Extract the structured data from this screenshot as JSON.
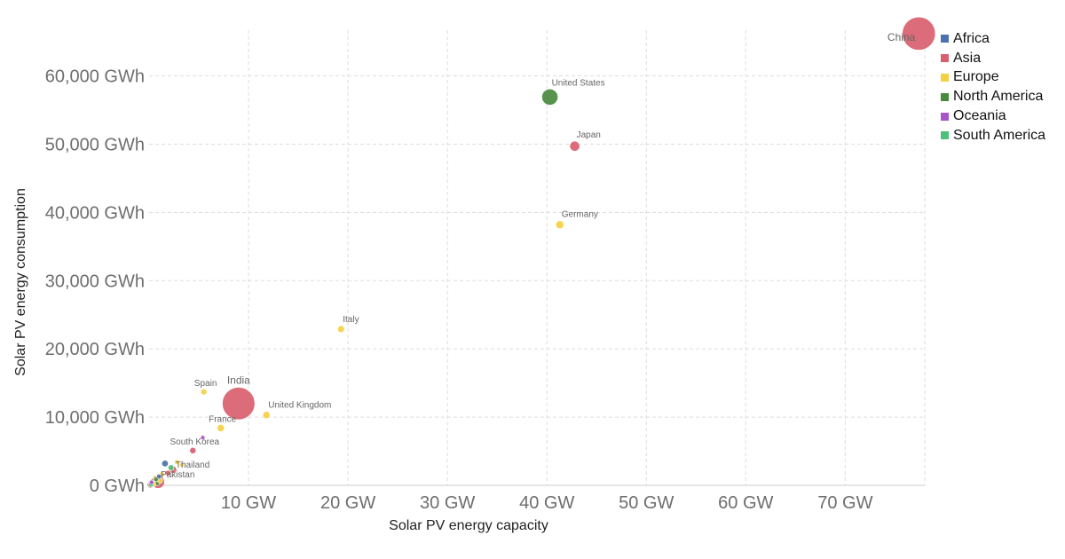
{
  "chart_data": {
    "type": "scatter",
    "xlabel": "Solar PV energy capacity",
    "ylabel": "Solar PV energy consumption",
    "xlim": [
      0,
      78
    ],
    "ylim": [
      0,
      68000
    ],
    "x_ticks": [
      {
        "value": 10,
        "label": "10 GW"
      },
      {
        "value": 20,
        "label": "20 GW"
      },
      {
        "value": 30,
        "label": "30 GW"
      },
      {
        "value": 40,
        "label": "40 GW"
      },
      {
        "value": 50,
        "label": "50 GW"
      },
      {
        "value": 60,
        "label": "60 GW"
      },
      {
        "value": 70,
        "label": "70 GW"
      }
    ],
    "y_ticks": [
      {
        "value": 0,
        "label": "0 GWh"
      },
      {
        "value": 10000,
        "label": "10,000 GWh"
      },
      {
        "value": 20000,
        "label": "20,000 GWh"
      },
      {
        "value": 30000,
        "label": "30,000 GWh"
      },
      {
        "value": 40000,
        "label": "40,000 GWh"
      },
      {
        "value": 50000,
        "label": "50,000 GWh"
      },
      {
        "value": 60000,
        "label": "60,000 GWh"
      }
    ],
    "grid": true,
    "legend_position": "top-right",
    "legend": [
      {
        "name": "Africa",
        "color": "#4c72b0"
      },
      {
        "name": "Asia",
        "color": "#d95f6e"
      },
      {
        "name": "Europe",
        "color": "#f5d042"
      },
      {
        "name": "North America",
        "color": "#4a8a3f"
      },
      {
        "name": "Oceania",
        "color": "#a855c9"
      },
      {
        "name": "South America",
        "color": "#4fc07a"
      }
    ],
    "points": [
      {
        "label": "China",
        "x": 77.4,
        "y": 66200,
        "region": "Asia",
        "size": 1390
      },
      {
        "label": "United States",
        "x": 40.3,
        "y": 56900,
        "region": "North America",
        "size": 330
      },
      {
        "label": "Japan",
        "x": 42.8,
        "y": 49700,
        "region": "Asia",
        "size": 126
      },
      {
        "label": "Germany",
        "x": 41.3,
        "y": 38200,
        "region": "Europe",
        "size": 83
      },
      {
        "label": "Italy",
        "x": 19.3,
        "y": 22900,
        "region": "Europe",
        "size": 60
      },
      {
        "label": "India",
        "x": 9.0,
        "y": 12000,
        "region": "Asia",
        "size": 1340
      },
      {
        "label": "Spain",
        "x": 5.5,
        "y": 13700,
        "region": "Europe",
        "size": 47
      },
      {
        "label": "United Kingdom",
        "x": 11.8,
        "y": 10300,
        "region": "Europe",
        "size": 66
      },
      {
        "label": "France",
        "x": 7.2,
        "y": 8400,
        "region": "Europe",
        "size": 67
      },
      {
        "label": "South Korea",
        "x": 4.4,
        "y": 5100,
        "region": "Asia",
        "size": 51
      },
      {
        "label": "Thailand",
        "x": 2.4,
        "y": 2300,
        "region": "Asia",
        "size": 69
      },
      {
        "label": "Pakistan",
        "x": 0.9,
        "y": 500,
        "region": "Asia",
        "size": 212
      },
      {
        "label": "",
        "x": 5.4,
        "y": 7000,
        "region": "Oceania",
        "size": 24
      },
      {
        "label": "",
        "x": 1.6,
        "y": 3200,
        "region": "Africa",
        "size": 55
      },
      {
        "label": "",
        "x": 2.2,
        "y": 2600,
        "region": "South America",
        "size": 45
      },
      {
        "label": "",
        "x": 2.8,
        "y": 3400,
        "region": "Europe",
        "size": 30
      },
      {
        "label": "",
        "x": 1.3,
        "y": 1600,
        "region": "Europe",
        "size": 35
      },
      {
        "label": "",
        "x": 1.9,
        "y": 1800,
        "region": "Asia",
        "size": 40
      },
      {
        "label": "",
        "x": 0.6,
        "y": 1100,
        "region": "Europe",
        "size": 30
      },
      {
        "label": "",
        "x": 0.5,
        "y": 600,
        "region": "Asia",
        "size": 60
      },
      {
        "label": "",
        "x": 0.3,
        "y": 300,
        "region": "Africa",
        "size": 80
      },
      {
        "label": "",
        "x": 0.4,
        "y": 200,
        "region": "Europe",
        "size": 40
      },
      {
        "label": "",
        "x": 0.2,
        "y": 150,
        "region": "South America",
        "size": 35
      },
      {
        "label": "",
        "x": 0.7,
        "y": 900,
        "region": "North America",
        "size": 30
      },
      {
        "label": "",
        "x": 0.15,
        "y": 100,
        "region": "Asia",
        "size": 55
      },
      {
        "label": "",
        "x": 1.0,
        "y": 1300,
        "region": "Africa",
        "size": 30
      },
      {
        "label": "",
        "x": 3.3,
        "y": 3000,
        "region": "Europe",
        "size": 25
      },
      {
        "label": "",
        "x": 0.25,
        "y": 450,
        "region": "Oceania",
        "size": 25
      },
      {
        "label": "",
        "x": 0.8,
        "y": 400,
        "region": "North America",
        "size": 45
      },
      {
        "label": "",
        "x": 1.1,
        "y": 700,
        "region": "Europe",
        "size": 35
      }
    ]
  }
}
